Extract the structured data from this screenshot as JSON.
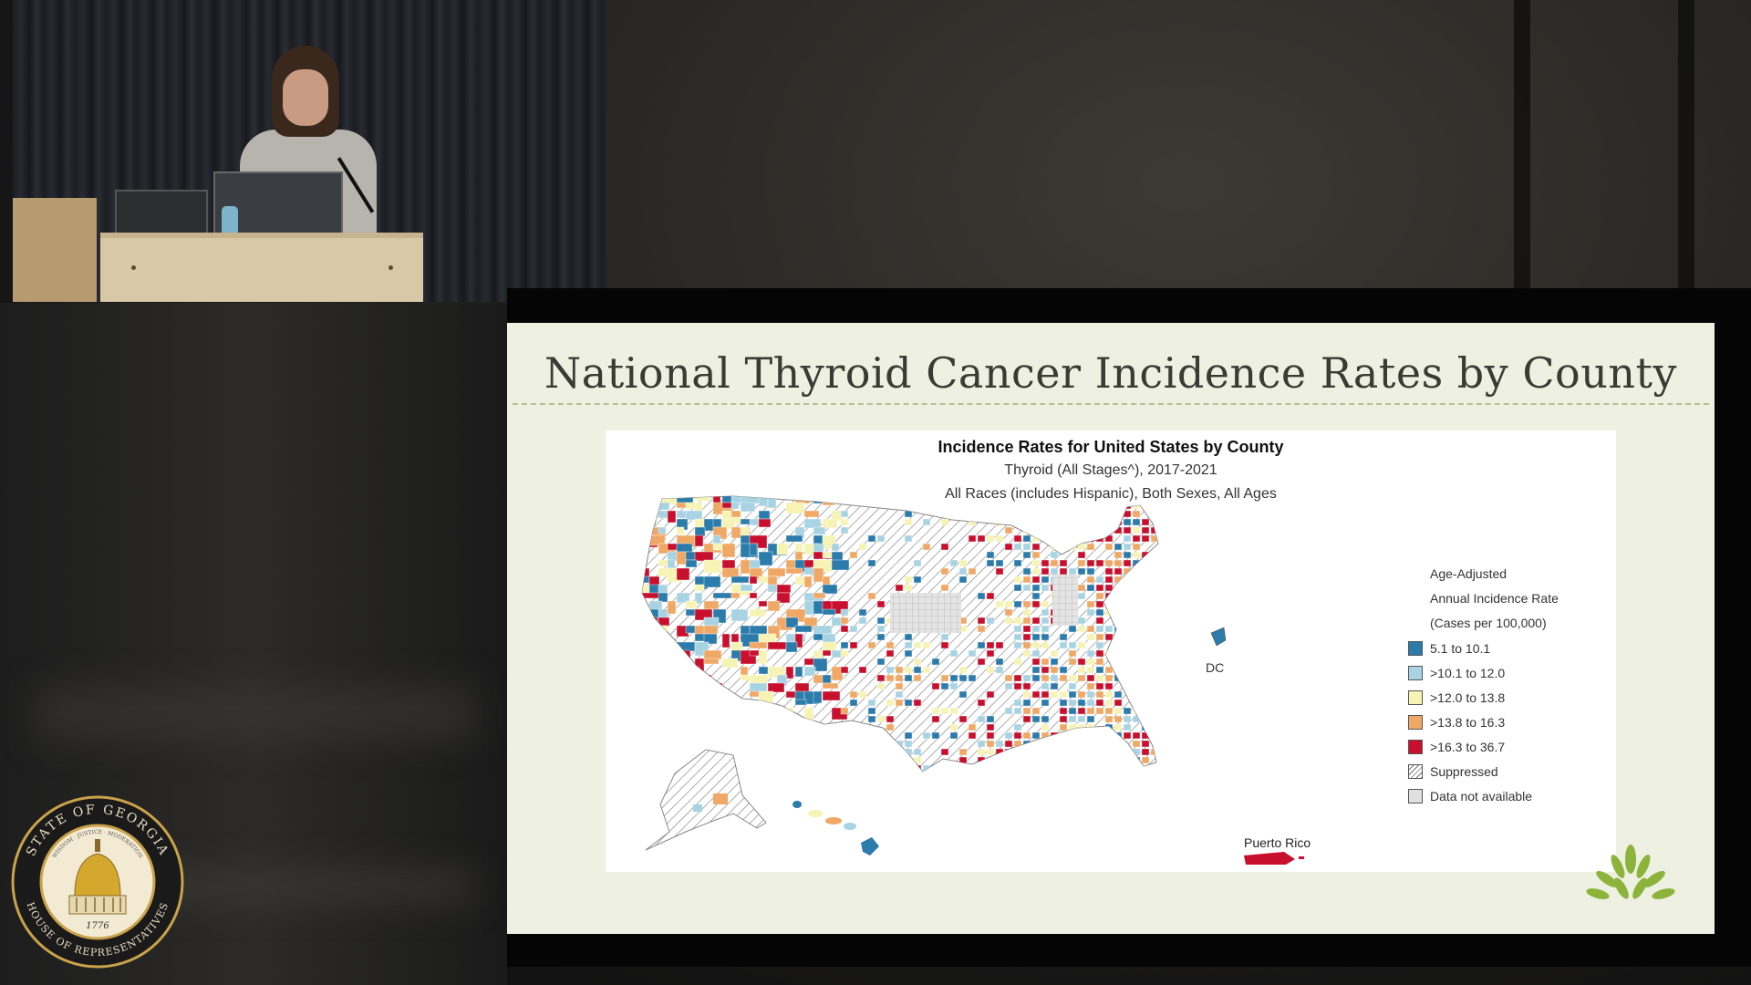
{
  "slide": {
    "title": "National Thyroid Cancer Incidence Rates by County"
  },
  "map": {
    "title": "Incidence Rates for United States by County",
    "subtitle1": "Thyroid (All Stages^), 2017-2021",
    "subtitle2": "All Races (includes Hispanic), Both Sexes, All Ages",
    "dc_label": "DC",
    "pr_label": "Puerto Rico",
    "legend": {
      "heading": [
        "Age-Adjusted",
        "Annual Incidence Rate",
        "(Cases per 100,000)"
      ],
      "items": [
        {
          "label": "5.1 to 10.1",
          "color": "#2b7bab"
        },
        {
          "label": ">10.1 to 12.0",
          "color": "#a8d3e3"
        },
        {
          "label": ">12.0 to 13.8",
          "color": "#f6f3b4"
        },
        {
          "label": ">13.8 to 16.3",
          "color": "#efa865"
        },
        {
          "label": ">16.3 to 36.7",
          "color": "#c8102e"
        },
        {
          "label": "Suppressed",
          "color": "hatch"
        },
        {
          "label": "Data not available",
          "color": "#e0e0e0"
        }
      ]
    }
  },
  "seal": {
    "top_text": "STATE OF GEORGIA",
    "bottom_text": "HOUSE OF REPRESENTATIVES",
    "motto": "WISDOM · JUSTICE · MODERATION",
    "year": "1776"
  }
}
